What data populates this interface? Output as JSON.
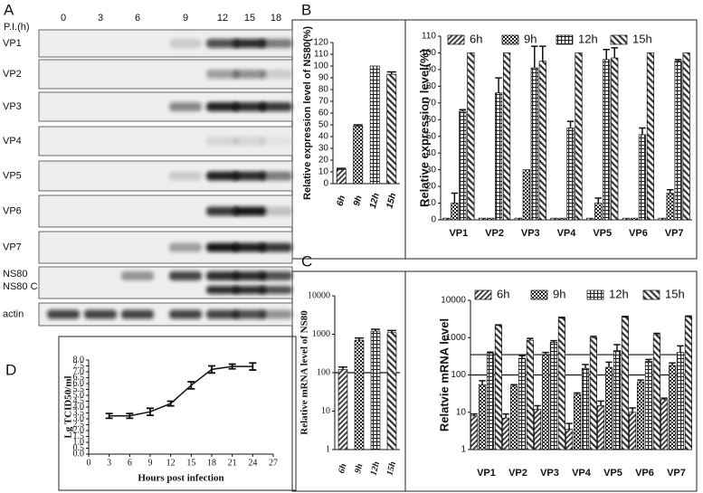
{
  "blot": {
    "panel": "A",
    "time_label": "P.I.(h)",
    "times": [
      "0",
      "3",
      "6",
      "9",
      "12",
      "15",
      "18"
    ],
    "rows": [
      "VP1",
      "VP2",
      "VP3",
      "VP4",
      "VP5",
      "VP6",
      "VP7",
      "NS80",
      "actin"
    ],
    "extra_label": "NS80 C"
  },
  "chart_data": [
    {
      "type": "bar",
      "panel": "B",
      "y_label": "Relative expression level of NS80(%)",
      "categories": [
        "6h",
        "9h",
        "12h",
        "15h"
      ],
      "values": [
        12,
        49,
        100,
        93
      ],
      "errors": [
        1,
        1,
        0,
        2
      ],
      "ylim": [
        0,
        120
      ],
      "yticks": [
        0,
        10,
        20,
        30,
        40,
        50,
        60,
        70,
        80,
        90,
        100,
        110,
        120
      ]
    },
    {
      "type": "bar",
      "y_label": "Relative expression level(%)",
      "categories": [
        "VP1",
        "VP2",
        "VP3",
        "VP4",
        "VP5",
        "VP6",
        "VP7"
      ],
      "series": [
        {
          "name": "6h",
          "values": [
            1,
            1,
            1,
            1,
            1,
            1,
            1
          ],
          "errors": [
            0,
            0,
            0,
            0,
            0,
            0,
            0
          ]
        },
        {
          "name": "9h",
          "values": [
            10,
            1,
            30,
            1,
            10,
            1,
            16
          ],
          "errors": [
            6,
            0,
            0,
            0,
            3,
            0,
            2
          ]
        },
        {
          "name": "12h",
          "values": [
            65,
            76,
            91,
            55,
            96,
            51,
            95
          ],
          "errors": [
            1,
            9,
            13,
            4,
            6,
            4,
            1
          ]
        },
        {
          "name": "15h",
          "values": [
            100,
            100,
            95,
            100,
            97,
            100,
            100
          ],
          "errors": [
            0,
            0,
            9,
            0,
            6,
            0,
            0
          ]
        }
      ],
      "legend": "top",
      "ylim": [
        0,
        110
      ],
      "yticks": [
        0,
        10,
        20,
        30,
        40,
        50,
        60,
        70,
        80,
        90,
        100,
        110
      ]
    },
    {
      "type": "bar",
      "panel": "C",
      "y_label": "Relative mRNA level of NS80",
      "categories": [
        "6h",
        "9h",
        "12h",
        "15h"
      ],
      "values": [
        120,
        700,
        1200,
        1100
      ],
      "errors": [
        20,
        100,
        150,
        150
      ],
      "log": true,
      "reference_lines": [
        100
      ],
      "ylim": [
        1,
        10000
      ],
      "yticks": [
        1,
        10,
        100,
        1000,
        10000
      ]
    },
    {
      "type": "bar",
      "y_label": "Relatvie mRNA level",
      "categories": [
        "VP1",
        "VP2",
        "VP3",
        "VP4",
        "VP5",
        "VP6",
        "VP7"
      ],
      "series": [
        {
          "name": "6h",
          "values": [
            8,
            7,
            12,
            3.5,
            15,
            10,
            22
          ],
          "errors": [
            1,
            2,
            3,
            1.5,
            5,
            3,
            2
          ]
        },
        {
          "name": "9h",
          "values": [
            55,
            50,
            350,
            30,
            160,
            65,
            180
          ],
          "errors": [
            15,
            5,
            50,
            3,
            60,
            8,
            30
          ]
        },
        {
          "name": "12h",
          "values": [
            380,
            280,
            750,
            150,
            450,
            230,
            400
          ],
          "errors": [
            30,
            50,
            80,
            40,
            200,
            30,
            200
          ]
        },
        {
          "name": "15h",
          "values": [
            2100,
            850,
            3300,
            1000,
            3500,
            1200,
            3600
          ],
          "errors": [
            100,
            100,
            200,
            80,
            200,
            100,
            200
          ]
        }
      ],
      "legend": "top",
      "log": true,
      "reference_lines": [
        100,
        350
      ],
      "ylim": [
        1,
        10000
      ],
      "yticks": [
        1,
        10,
        100,
        1000,
        10000
      ]
    },
    {
      "type": "line",
      "panel": "D",
      "y_label": "Lg TCID50/ml",
      "x_label": "Hours post infection",
      "x": [
        3,
        6,
        9,
        12,
        15,
        18,
        21,
        24
      ],
      "values": [
        3.25,
        3.25,
        3.6,
        4.3,
        5.85,
        7.2,
        7.45,
        7.45
      ],
      "errors": [
        0.2,
        0.2,
        0.3,
        0.2,
        0.3,
        0.3,
        0.2,
        0.3
      ],
      "xlim": [
        0,
        27
      ],
      "xticks": [
        0,
        3,
        6,
        9,
        12,
        15,
        18,
        21,
        24,
        27
      ],
      "ylim": [
        0,
        8
      ],
      "yticks": [
        {
          "value": 0,
          "label": "0.0"
        },
        {
          "value": 0.5,
          "label": "0.5"
        },
        {
          "value": 1,
          "label": "1.0"
        },
        {
          "value": 1.5,
          "label": "1.5"
        },
        {
          "value": 2,
          "label": "2.0"
        },
        {
          "value": 2.5,
          "label": "2.5"
        },
        {
          "value": 3,
          "label": "3.0"
        },
        {
          "value": 3.5,
          "label": "3.5"
        },
        {
          "value": 4,
          "label": "4.0"
        },
        {
          "value": 4.5,
          "label": "4.5"
        },
        {
          "value": 5,
          "label": "5.0"
        },
        {
          "value": 5.5,
          "label": "5.5"
        },
        {
          "value": 6,
          "label": "6.0"
        },
        {
          "value": 6.5,
          "label": "6.5"
        },
        {
          "value": 7,
          "label": "7.0"
        },
        {
          "value": 7.5,
          "label": "7.5"
        },
        {
          "value": 8,
          "label": "8.0"
        }
      ]
    }
  ]
}
